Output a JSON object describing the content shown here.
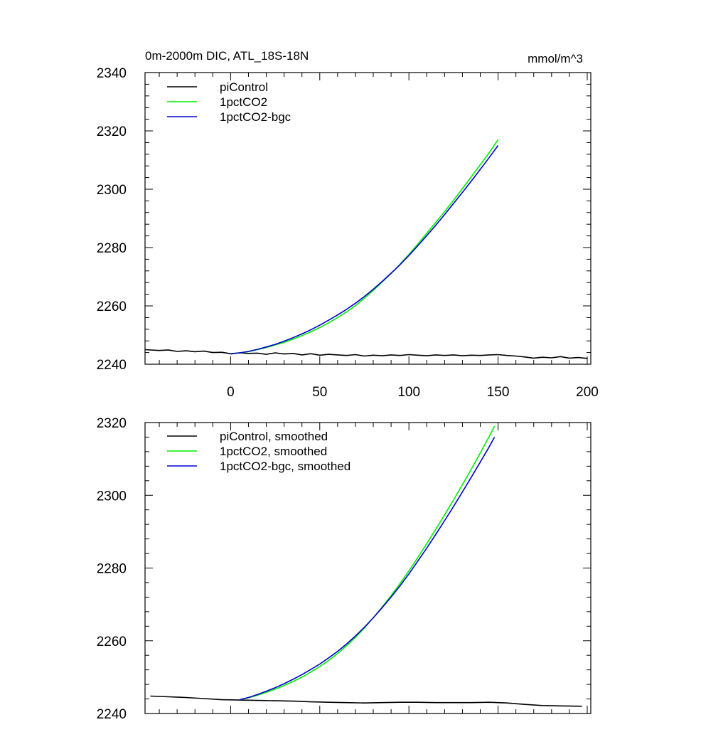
{
  "chart_data": [
    {
      "type": "line",
      "title_left": "0m-2000m DIC, ATL_18S-18N",
      "title_right": "mmol/m^3",
      "xlabel": "",
      "ylabel": "",
      "xlim": [
        -48,
        202
      ],
      "ylim": [
        2240,
        2340
      ],
      "xticks": [
        0,
        50,
        100,
        150,
        200
      ],
      "xtick_labels": [
        "0",
        "50",
        "100",
        "150",
        "200"
      ],
      "yticks": [
        2240,
        2260,
        2280,
        2300,
        2320,
        2340
      ],
      "ytick_labels": [
        "2240",
        "2260",
        "2280",
        "2300",
        "2320",
        "2340"
      ],
      "legend_position": "top-left",
      "series": [
        {
          "name": "piControl",
          "color": "#000000",
          "x": [
            -48,
            -40,
            -35,
            -30,
            -25,
            -20,
            -15,
            -10,
            -5,
            0,
            5,
            10,
            15,
            20,
            25,
            30,
            35,
            40,
            45,
            50,
            55,
            60,
            65,
            70,
            75,
            80,
            85,
            90,
            95,
            100,
            105,
            110,
            115,
            120,
            125,
            130,
            135,
            140,
            145,
            150,
            155,
            160,
            165,
            170,
            175,
            180,
            185,
            190,
            195,
            200
          ],
          "values": [
            2245.0,
            2244.7,
            2244.9,
            2244.4,
            2244.6,
            2244.3,
            2244.5,
            2244.0,
            2244.1,
            2243.6,
            2243.9,
            2243.7,
            2243.8,
            2243.4,
            2243.9,
            2243.5,
            2243.7,
            2243.2,
            2243.6,
            2243.1,
            2243.4,
            2243.2,
            2243.0,
            2243.3,
            2242.8,
            2243.1,
            2242.9,
            2243.2,
            2243.0,
            2243.3,
            2243.1,
            2242.9,
            2243.2,
            2243.0,
            2243.2,
            2242.9,
            2243.1,
            2243.0,
            2243.2,
            2243.3,
            2243.0,
            2242.8,
            2242.5,
            2242.1,
            2242.4,
            2242.2,
            2242.6,
            2242.1,
            2242.3,
            2242.0
          ]
        },
        {
          "name": "1pctCO2",
          "color": "#00ee00",
          "x": [
            0,
            5,
            10,
            15,
            20,
            25,
            30,
            35,
            40,
            45,
            50,
            55,
            60,
            65,
            70,
            75,
            80,
            85,
            90,
            95,
            100,
            105,
            110,
            115,
            120,
            125,
            130,
            135,
            140,
            145,
            150
          ],
          "values": [
            2243.5,
            2243.9,
            2244.3,
            2245.0,
            2245.7,
            2246.6,
            2247.5,
            2248.6,
            2249.8,
            2251.1,
            2252.6,
            2254.2,
            2256.0,
            2257.9,
            2260.1,
            2262.6,
            2265.3,
            2268.2,
            2271.1,
            2274.3,
            2277.6,
            2281.2,
            2284.9,
            2288.6,
            2292.3,
            2296.2,
            2300.2,
            2304.3,
            2308.4,
            2312.5,
            2317.0
          ]
        },
        {
          "name": "1pctCO2-bgc",
          "color": "#0000cc",
          "x": [
            0,
            5,
            10,
            15,
            20,
            25,
            30,
            35,
            40,
            45,
            50,
            55,
            60,
            65,
            70,
            75,
            80,
            85,
            90,
            95,
            100,
            105,
            110,
            115,
            120,
            125,
            130,
            135,
            140,
            145,
            150
          ],
          "values": [
            2243.5,
            2243.9,
            2244.4,
            2245.1,
            2245.9,
            2246.8,
            2247.9,
            2249.1,
            2250.4,
            2251.8,
            2253.4,
            2255.1,
            2256.9,
            2258.8,
            2260.9,
            2263.2,
            2265.7,
            2268.4,
            2271.2,
            2274.1,
            2277.3,
            2280.6,
            2284.1,
            2287.6,
            2291.3,
            2295.1,
            2298.9,
            2302.8,
            2306.8,
            2310.8,
            2315.0
          ]
        }
      ]
    },
    {
      "type": "line",
      "xlim": [
        -48,
        202
      ],
      "ylim": [
        2240,
        2320
      ],
      "xticks": [
        0,
        50,
        100,
        150,
        200
      ],
      "yticks": [
        2240,
        2260,
        2280,
        2300,
        2320
      ],
      "ytick_labels": [
        "2240",
        "2260",
        "2280",
        "2300",
        "2320"
      ],
      "legend_position": "top-left",
      "series": [
        {
          "name": "piControl, smoothed",
          "color": "#000000",
          "x": [
            -45,
            -35,
            -25,
            -15,
            -5,
            5,
            15,
            25,
            35,
            45,
            55,
            65,
            75,
            85,
            95,
            105,
            115,
            125,
            135,
            145,
            155,
            165,
            175,
            185,
            197
          ],
          "values": [
            2244.8,
            2244.6,
            2244.4,
            2244.1,
            2243.8,
            2243.7,
            2243.6,
            2243.5,
            2243.4,
            2243.2,
            2243.1,
            2243.0,
            2242.9,
            2243.0,
            2243.1,
            2243.1,
            2243.0,
            2243.0,
            2243.0,
            2243.1,
            2242.9,
            2242.5,
            2242.2,
            2242.1,
            2242.0
          ]
        },
        {
          "name": "1pctCO2, smoothed",
          "color": "#00ee00",
          "x": [
            5,
            10,
            15,
            20,
            25,
            30,
            35,
            40,
            45,
            50,
            55,
            60,
            65,
            70,
            75,
            80,
            85,
            90,
            95,
            100,
            105,
            110,
            115,
            120,
            125,
            130,
            135,
            140,
            145,
            148
          ],
          "values": [
            2243.8,
            2244.3,
            2245.0,
            2245.8,
            2246.7,
            2247.7,
            2248.8,
            2250.0,
            2251.4,
            2252.9,
            2254.6,
            2256.5,
            2258.6,
            2260.9,
            2263.5,
            2266.3,
            2269.3,
            2272.4,
            2275.7,
            2279.2,
            2282.9,
            2286.7,
            2290.6,
            2294.6,
            2298.7,
            2302.9,
            2307.2,
            2311.6,
            2316.1,
            2319.0
          ]
        },
        {
          "name": "1pctCO2-bgc, smoothed",
          "color": "#0000cc",
          "x": [
            5,
            10,
            15,
            20,
            25,
            30,
            35,
            40,
            45,
            50,
            55,
            60,
            65,
            70,
            75,
            80,
            85,
            90,
            95,
            100,
            105,
            110,
            115,
            120,
            125,
            130,
            135,
            140,
            145,
            148
          ],
          "values": [
            2243.8,
            2244.4,
            2245.2,
            2246.1,
            2247.1,
            2248.2,
            2249.4,
            2250.7,
            2252.1,
            2253.6,
            2255.3,
            2257.1,
            2259.1,
            2261.3,
            2263.7,
            2266.3,
            2269.1,
            2272.0,
            2275.1,
            2278.4,
            2281.9,
            2285.5,
            2289.2,
            2293.0,
            2296.9,
            2300.9,
            2305.0,
            2309.1,
            2313.3,
            2316.0
          ]
        }
      ]
    }
  ]
}
